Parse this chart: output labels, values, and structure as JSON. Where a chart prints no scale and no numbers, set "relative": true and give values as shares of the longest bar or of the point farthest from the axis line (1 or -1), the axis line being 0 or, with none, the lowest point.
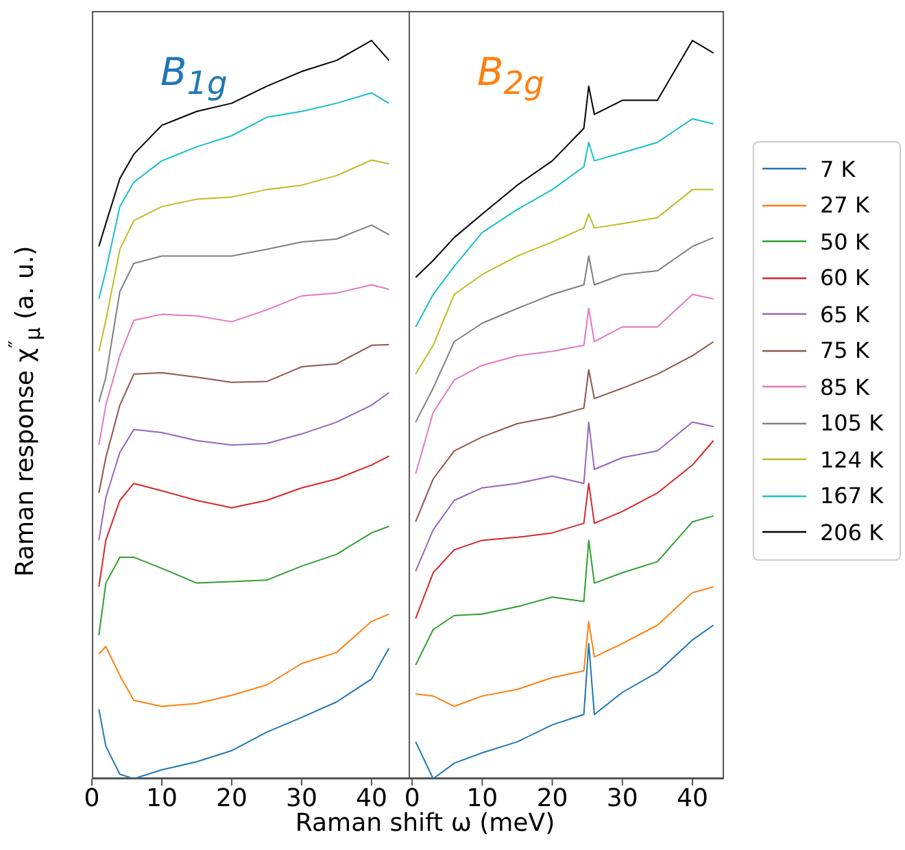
{
  "chart_data": [
    {
      "type": "line",
      "title": "B$_{1g}$",
      "xlabel": "Raman shift ω (meV)",
      "ylabel": "Raman response χ$^{″}$$_{μ}$ (a. u.)",
      "relative": true,
      "xlim": [
        0,
        45.5
      ],
      "xticks": [
        0,
        10,
        20,
        30,
        40
      ],
      "tick_labels": "x",
      "x": [
        1,
        2,
        4,
        6,
        10,
        15,
        20,
        25,
        30,
        35,
        40,
        42.5
      ],
      "series": [
        {
          "color": "#1f77b4",
          "values": [
            0.094,
            0.044,
            0.006,
            0,
            0.012,
            0.023,
            0.038,
            0.063,
            0.083,
            0.104,
            0.135,
            0.177
          ]
        },
        {
          "color": "#ff7f0e",
          "values": [
            0.169,
            0.179,
            0.14,
            0.106,
            0.098,
            0.102,
            0.113,
            0.127,
            0.156,
            0.171,
            0.213,
            0.223
          ]
        },
        {
          "color": "#2ca02c",
          "values": [
            0.194,
            0.265,
            0.3,
            0.3,
            0.285,
            0.265,
            0.267,
            0.269,
            0.288,
            0.304,
            0.333,
            0.342
          ]
        },
        {
          "color": "#d62728",
          "values": [
            0.26,
            0.323,
            0.377,
            0.4,
            0.39,
            0.377,
            0.367,
            0.377,
            0.394,
            0.406,
            0.425,
            0.437
          ]
        },
        {
          "color": "#9467bd",
          "values": [
            0.323,
            0.381,
            0.442,
            0.473,
            0.469,
            0.458,
            0.452,
            0.454,
            0.467,
            0.483,
            0.506,
            0.523
          ]
        },
        {
          "color": "#8c564b",
          "values": [
            0.387,
            0.435,
            0.506,
            0.548,
            0.55,
            0.544,
            0.537,
            0.538,
            0.558,
            0.562,
            0.587,
            0.588
          ]
        },
        {
          "color": "#e377c2",
          "values": [
            0.452,
            0.506,
            0.573,
            0.621,
            0.629,
            0.627,
            0.619,
            0.635,
            0.654,
            0.658,
            0.669,
            0.663
          ]
        },
        {
          "color": "#7f7f7f",
          "values": [
            0.51,
            0.544,
            0.66,
            0.698,
            0.708,
            0.708,
            0.708,
            0.717,
            0.727,
            0.731,
            0.75,
            0.737
          ]
        },
        {
          "color": "#bcbd22",
          "values": [
            0.579,
            0.621,
            0.717,
            0.756,
            0.775,
            0.785,
            0.788,
            0.798,
            0.804,
            0.817,
            0.838,
            0.833
          ]
        },
        {
          "color": "#17becf",
          "values": [
            0.65,
            0.688,
            0.775,
            0.808,
            0.837,
            0.856,
            0.871,
            0.896,
            0.904,
            0.915,
            0.929,
            0.915
          ]
        },
        {
          "color": "#000000",
          "values": [
            0.721,
            0.752,
            0.813,
            0.846,
            0.885,
            0.904,
            0.915,
            0.938,
            0.958,
            0.973,
            1,
            0.973
          ]
        }
      ]
    },
    {
      "type": "line",
      "title": "B$_{2g}$",
      "relative": true,
      "xlim": [
        -0.5,
        44.5
      ],
      "xticks": [
        0,
        10,
        20,
        30,
        40
      ],
      "tick_labels": "x",
      "legend": "right",
      "x": [
        0.5,
        3,
        6,
        10,
        15,
        20,
        24.5,
        25.2,
        26,
        30,
        35,
        40,
        43
      ],
      "series": [
        {
          "name": "7 K",
          "color": "#1f77b4",
          "values": [
            0.05,
            0,
            0.021,
            0.035,
            0.05,
            0.073,
            0.087,
            0.183,
            0.087,
            0.117,
            0.144,
            0.188,
            0.208
          ]
        },
        {
          "name": "27 K",
          "color": "#ff7f0e",
          "values": [
            0.115,
            0.112,
            0.098,
            0.112,
            0.121,
            0.137,
            0.146,
            0.213,
            0.165,
            0.183,
            0.208,
            0.252,
            0.26
          ]
        },
        {
          "name": "50 K",
          "color": "#2ca02c",
          "values": [
            0.154,
            0.202,
            0.221,
            0.223,
            0.233,
            0.246,
            0.24,
            0.323,
            0.265,
            0.279,
            0.294,
            0.348,
            0.356
          ]
        },
        {
          "name": "60 K",
          "color": "#d62728",
          "values": [
            0.217,
            0.279,
            0.31,
            0.323,
            0.327,
            0.333,
            0.346,
            0.4,
            0.346,
            0.362,
            0.387,
            0.425,
            0.458
          ]
        },
        {
          "name": "65 K",
          "color": "#9467bd",
          "values": [
            0.281,
            0.337,
            0.377,
            0.394,
            0.4,
            0.41,
            0.4,
            0.483,
            0.419,
            0.435,
            0.444,
            0.483,
            0.477
          ]
        },
        {
          "name": "75 K",
          "color": "#8c564b",
          "values": [
            0.348,
            0.406,
            0.444,
            0.463,
            0.481,
            0.49,
            0.502,
            0.554,
            0.515,
            0.529,
            0.548,
            0.573,
            0.592
          ]
        },
        {
          "name": "85 K",
          "color": "#e377c2",
          "values": [
            0.413,
            0.496,
            0.54,
            0.56,
            0.573,
            0.579,
            0.587,
            0.637,
            0.592,
            0.612,
            0.612,
            0.656,
            0.65
          ]
        },
        {
          "name": "105 K",
          "color": "#7f7f7f",
          "values": [
            0.483,
            0.529,
            0.592,
            0.617,
            0.637,
            0.656,
            0.669,
            0.708,
            0.669,
            0.683,
            0.688,
            0.721,
            0.733
          ]
        },
        {
          "name": "124 K",
          "color": "#bcbd22",
          "values": [
            0.548,
            0.587,
            0.656,
            0.683,
            0.708,
            0.727,
            0.746,
            0.765,
            0.746,
            0.752,
            0.76,
            0.798,
            0.798
          ]
        },
        {
          "name": "167 K",
          "color": "#17becf",
          "values": [
            0.612,
            0.656,
            0.694,
            0.74,
            0.771,
            0.798,
            0.829,
            0.862,
            0.837,
            0.848,
            0.862,
            0.894,
            0.887
          ]
        },
        {
          "name": "206 K",
          "color": "#000000",
          "values": [
            0.679,
            0.702,
            0.733,
            0.765,
            0.804,
            0.837,
            0.881,
            0.938,
            0.9,
            0.919,
            0.919,
            1,
            0.983
          ]
        }
      ]
    }
  ]
}
